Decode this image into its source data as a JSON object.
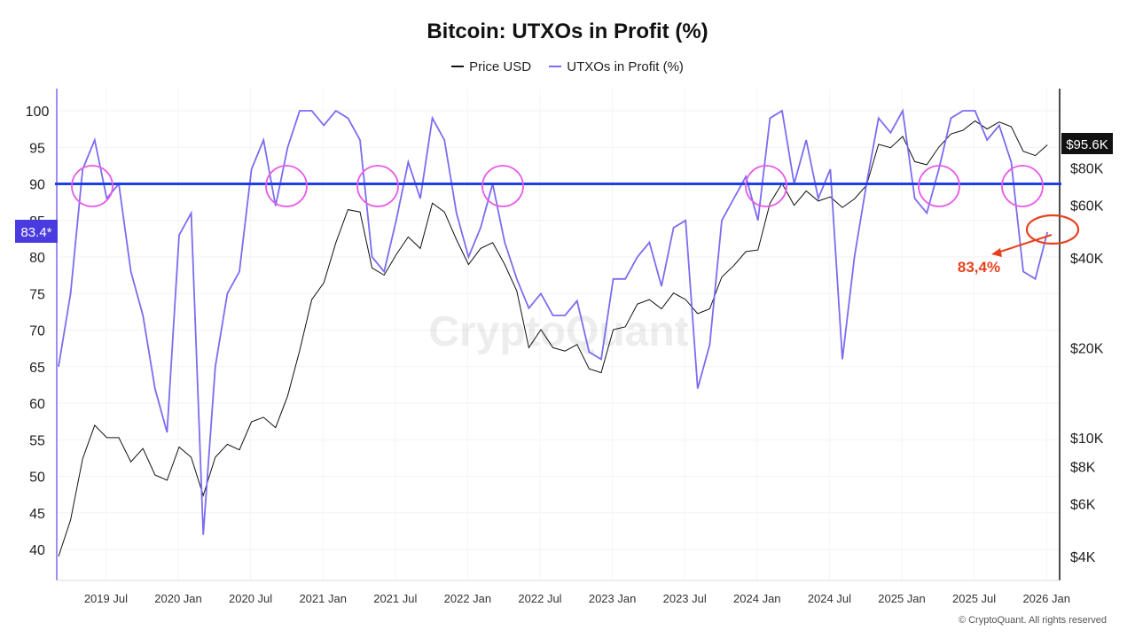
{
  "chart_data": {
    "type": "line",
    "title": "Bitcoin: UTXOs in Profit (%)",
    "legend_position": "top-center",
    "grid": true,
    "x": [
      "2019-03",
      "2019-04",
      "2019-05",
      "2019-06",
      "2019-07",
      "2019-08",
      "2019-09",
      "2019-10",
      "2019-11",
      "2019-12",
      "2020-01",
      "2020-02",
      "2020-03",
      "2020-04",
      "2020-05",
      "2020-06",
      "2020-07",
      "2020-08",
      "2020-09",
      "2020-10",
      "2020-11",
      "2020-12",
      "2021-01",
      "2021-02",
      "2021-03",
      "2021-04",
      "2021-05",
      "2021-06",
      "2021-07",
      "2021-08",
      "2021-09",
      "2021-10",
      "2021-11",
      "2021-12",
      "2022-01",
      "2022-02",
      "2022-03",
      "2022-04",
      "2022-05",
      "2022-06",
      "2022-07",
      "2022-08",
      "2022-09",
      "2022-10",
      "2022-11",
      "2022-12",
      "2023-01",
      "2023-02",
      "2023-03",
      "2023-04",
      "2023-05",
      "2023-06",
      "2023-07",
      "2023-08",
      "2023-09",
      "2023-10",
      "2023-11",
      "2023-12",
      "2024-01",
      "2024-02",
      "2024-03",
      "2024-04",
      "2024-05",
      "2024-06",
      "2024-07",
      "2024-08",
      "2024-09",
      "2024-10",
      "2024-11",
      "2024-12",
      "2025-01",
      "2025-02",
      "2025-03",
      "2025-04",
      "2025-05",
      "2025-06",
      "2025-07",
      "2025-08",
      "2025-09",
      "2025-10",
      "2025-11",
      "2025-12",
      "2026-01"
    ],
    "x_tick_labels": [
      "2019 Jul",
      "2020 Jan",
      "2020 Jul",
      "2021 Jan",
      "2021 Jul",
      "2022 Jan",
      "2022 Jul",
      "2023 Jan",
      "2023 Jul",
      "2024 Jan",
      "2024 Jul",
      "2025 Jan",
      "2025 Jul",
      "2026 Jan"
    ],
    "y_left": {
      "ylim": [
        37,
        103
      ],
      "ticks": [
        40,
        45,
        50,
        55,
        60,
        65,
        70,
        75,
        80,
        85,
        90,
        95,
        100
      ]
    },
    "y_right": {
      "scale": "log",
      "ticks": [
        "$4K",
        "$6K",
        "$8K",
        "$10K",
        "$20K",
        "$40K",
        "$60K",
        "$80K"
      ],
      "tick_values": [
        4000,
        6000,
        8000,
        10000,
        20000,
        40000,
        60000,
        80000
      ]
    },
    "series": [
      {
        "name": "Price USD",
        "axis": "right",
        "color": "#111111",
        "values": [
          4000,
          5300,
          8500,
          11000,
          10000,
          10000,
          8300,
          9200,
          7500,
          7200,
          9300,
          8600,
          6400,
          8600,
          9500,
          9100,
          11300,
          11700,
          10800,
          13800,
          19600,
          29000,
          33000,
          45000,
          58000,
          57000,
          37000,
          35000,
          41000,
          47000,
          43000,
          61000,
          57000,
          46000,
          38000,
          43000,
          45000,
          38000,
          31000,
          20000,
          23000,
          20000,
          19500,
          20500,
          17000,
          16500,
          23000,
          23500,
          28000,
          29000,
          27000,
          30500,
          29000,
          26000,
          27000,
          34500,
          37700,
          42000,
          42500,
          61000,
          71000,
          60000,
          67000,
          62000,
          64000,
          59000,
          63000,
          70000,
          96000,
          93500,
          102000,
          84000,
          82000,
          94000,
          104000,
          107000,
          115000,
          108000,
          114000,
          110000,
          91000,
          88000,
          95600
        ]
      },
      {
        "name": "UTXOs in Profit (%)",
        "axis": "left",
        "color": "#7b6cf0",
        "values": [
          65,
          75,
          92,
          96,
          88,
          90,
          78,
          72,
          62,
          56,
          83,
          86,
          42,
          65,
          75,
          78,
          92,
          96,
          87,
          95,
          100,
          100,
          98,
          100,
          99,
          96,
          80,
          78,
          85,
          93,
          88,
          99,
          96,
          86,
          80,
          84,
          90,
          82,
          77,
          73,
          75,
          72,
          72,
          74,
          67,
          66,
          77,
          77,
          80,
          82,
          76,
          84,
          85,
          62,
          68,
          85,
          88,
          91,
          85,
          99,
          100,
          90,
          96,
          88,
          92,
          66,
          80,
          90,
          99,
          97,
          100,
          88,
          86,
          92,
          99,
          100,
          100,
          96,
          98,
          93,
          78,
          77,
          83.4
        ]
      }
    ],
    "reference_line": 90,
    "current_labels": {
      "left": "83.4*",
      "right": "$95.6K"
    },
    "annotation": "83,4%",
    "left_badge_color": "#4a3be0",
    "reference_color": "#1f3fe6",
    "circle_color": "#e85be8",
    "annotation_color": "#e8401c"
  },
  "watermark": "CryptoQuant",
  "footer": "© CryptoQuant. All rights reserved"
}
